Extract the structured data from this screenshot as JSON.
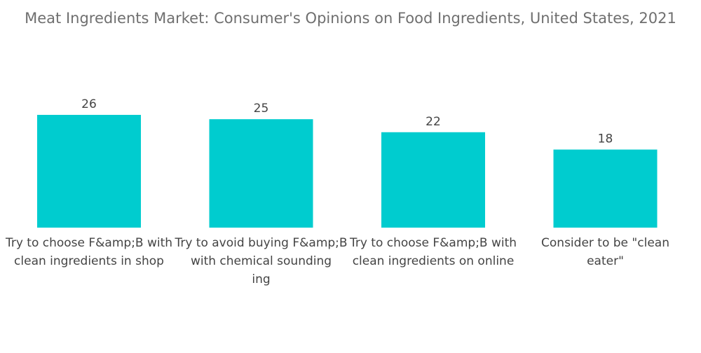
{
  "chart_data": {
    "type": "bar",
    "title": "Meat Ingredients Market: Consumer's Opinions on Food Ingredients, United States, 2021",
    "categories": [
      [
        "Try to choose F&amp;B with",
        "clean ingredients in shop"
      ],
      [
        "Try to avoid buying F&amp;B",
        "with chemical sounding",
        "ing"
      ],
      [
        "Try to choose F&amp;B with",
        "clean ingredients on online"
      ],
      [
        "Consider to be \"clean",
        "eater\""
      ]
    ],
    "values": [
      26,
      25,
      22,
      18
    ],
    "ylim": [
      0,
      26
    ],
    "grid": false,
    "legend": "none",
    "colors": {
      "bar": "#00cccf",
      "text": "#444444",
      "title": "#6f6f6f"
    }
  }
}
